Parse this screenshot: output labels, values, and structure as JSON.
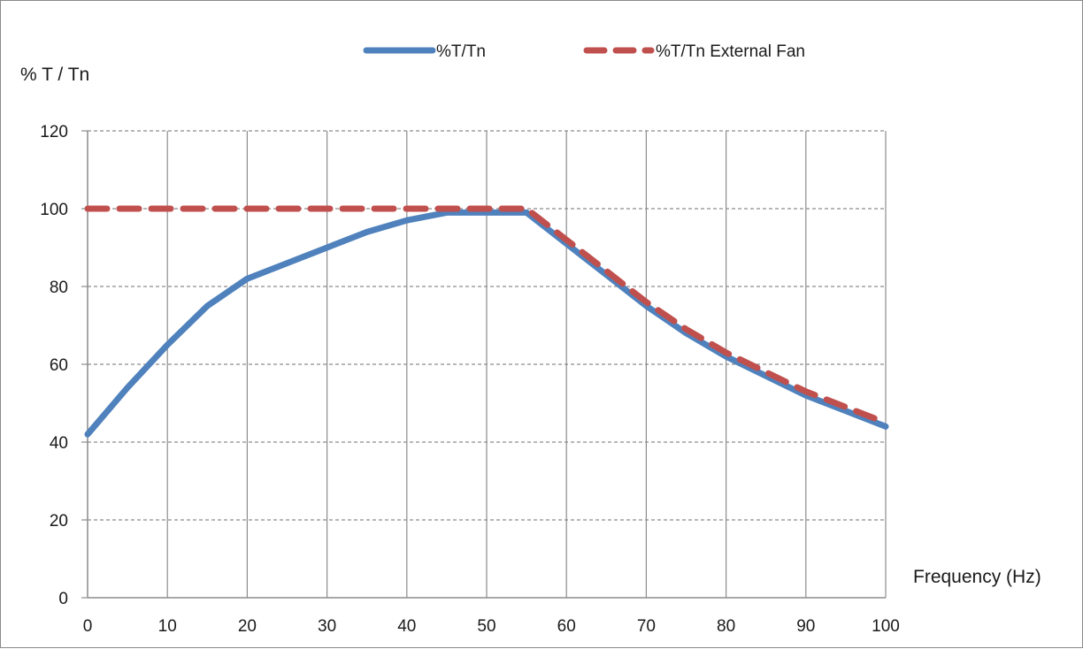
{
  "chart_data": {
    "type": "line",
    "ylabel": "% T / Tn",
    "xlabel": "Frequency (Hz)",
    "xlim": [
      0,
      100
    ],
    "ylim": [
      0,
      120
    ],
    "x_ticks": [
      "0",
      "10",
      "20",
      "30",
      "40",
      "50",
      "60",
      "70",
      "80",
      "90",
      "100"
    ],
    "y_ticks": [
      "0",
      "20",
      "40",
      "60",
      "80",
      "100",
      "120"
    ],
    "grid": true,
    "legend_position": "top",
    "series": [
      {
        "name": "%T/Tn",
        "color": "#4f81bd",
        "style": "solid",
        "x": [
          0,
          5,
          10,
          15,
          20,
          25,
          30,
          35,
          40,
          45,
          50,
          55,
          60,
          65,
          70,
          75,
          80,
          85,
          90,
          95,
          100
        ],
        "y": [
          42,
          54,
          65,
          75,
          82,
          86,
          90,
          94,
          97,
          99,
          99,
          99,
          91,
          83,
          75,
          68,
          62,
          57,
          52,
          48,
          44
        ]
      },
      {
        "name": "%T/Tn External Fan",
        "color": "#c0504d",
        "style": "dashed",
        "x": [
          0,
          5,
          10,
          15,
          20,
          25,
          30,
          35,
          40,
          45,
          50,
          55,
          60,
          65,
          70,
          75,
          80,
          85,
          90,
          95,
          100
        ],
        "y": [
          100,
          100,
          100,
          100,
          100,
          100,
          100,
          100,
          100,
          100,
          100,
          100,
          92,
          84,
          76,
          69,
          63,
          58,
          53,
          49,
          45
        ]
      }
    ]
  }
}
